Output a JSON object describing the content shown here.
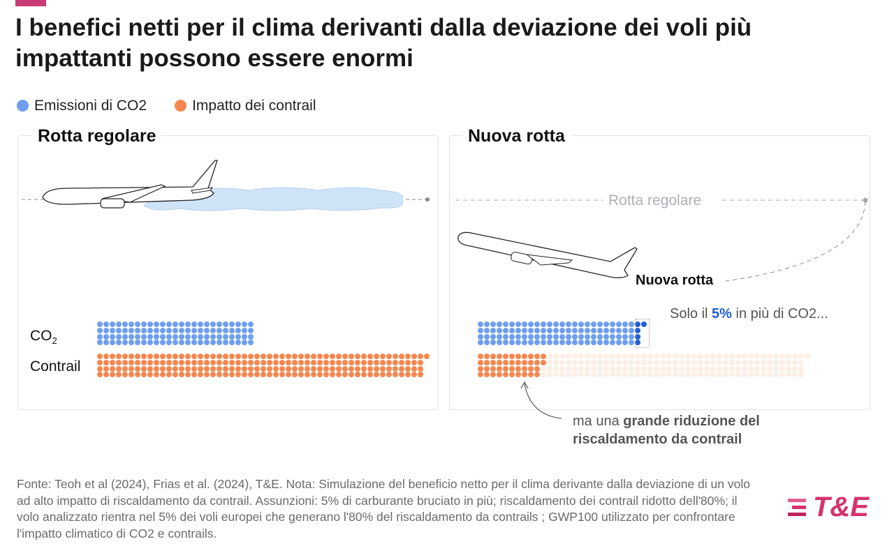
{
  "title": "I benefici netti per il clima derivanti dalla deviazione dei voli più impattanti possono essere enormi",
  "legend": [
    {
      "label": "Emissioni di CO2",
      "color": "#6e9ef0"
    },
    {
      "label": "Impatto dei contrail",
      "color": "#f5874f"
    }
  ],
  "panels": {
    "left": {
      "title": "Rotta regolare",
      "row_co2": "CO",
      "row_co2_sub": "2",
      "row_contrail": "Contrail"
    },
    "right": {
      "title": "Nuova rotta",
      "route_regular": "Rotta regolare",
      "route_new": "Nuova rotta",
      "note1_pre": "Solo il ",
      "note1_bold": "5%",
      "note1_post": " in più di CO2...",
      "note2_pre": "ma una ",
      "note2_bold": "grande riduzione del riscaldamento da contrail"
    }
  },
  "chart_data": {
    "type": "dot-matrix",
    "unit": "dots (relative climate impact, GWP100)",
    "series": [
      {
        "scenario": "Rotta regolare",
        "co2": 100,
        "contrail": 209
      },
      {
        "scenario": "Nuova rotta",
        "co2": 105,
        "co2_extra": 5,
        "contrail": 42,
        "contrail_avoided": 167
      }
    ],
    "colors": {
      "co2": "#6e9ef0",
      "co2_extra": "#1f5ed6",
      "contrail": "#f5874f",
      "contrail_faded": "#fdeee6"
    }
  },
  "footer": "Fonte: Teoh et al (2024), Frias et al. (2024), T&E. Nota: Simulazione del beneficio netto per il clima derivante dalla deviazione di un volo ad alto impatto di riscaldamento da contrail. Assunzioni: 5% di carburante bruciato in più; riscaldamento dei contrail ridotto dell'80%; il volo analizzato rientra nel 5% dei voli europei che generano l'80% del riscaldamento da contrails ; GWP100 utilizzato per confrontare l'impatto climatico di CO2 e contrails.",
  "logo": "T&E"
}
